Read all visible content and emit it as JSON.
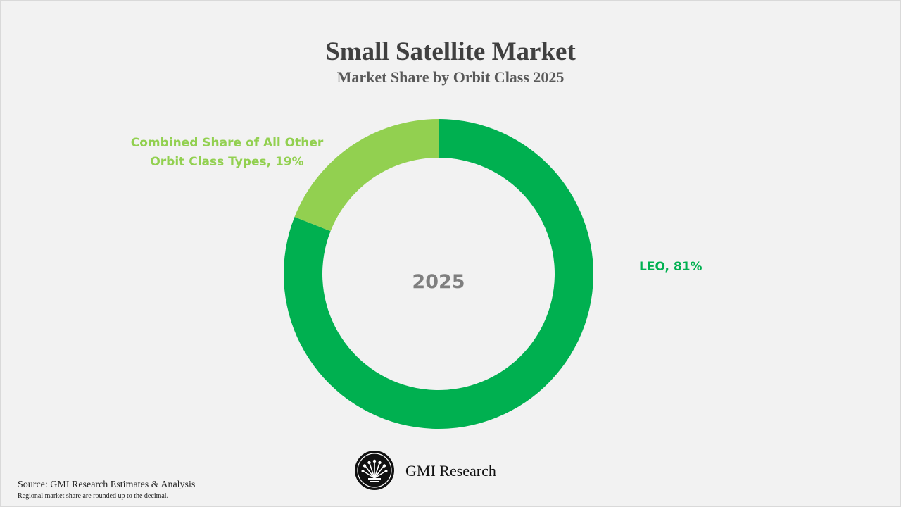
{
  "header": {
    "title": "Small Satellite Market",
    "subtitle": "Market Share by Orbit Class 2025"
  },
  "chart_data": {
    "type": "pie",
    "variant": "donut",
    "title": "Small Satellite Market",
    "subtitle": "Market Share by Orbit Class 2025",
    "center_label": "2025",
    "categories": [
      "LEO",
      "Combined Share of All Other Orbit Class Types"
    ],
    "values": [
      81,
      19
    ],
    "unit": "%",
    "colors": [
      "#00b050",
      "#92d050"
    ],
    "data_labels": [
      "LEO, 81%",
      "Combined Share of All Other Orbit Class Types, 19%"
    ],
    "legend": "none"
  },
  "footer": {
    "brand": "GMI Research",
    "source": "Source: GMI Research Estimates & Analysis",
    "note": "Regional market share are rounded up to the decimal."
  },
  "icons": {
    "logo": "gmi-logo-icon"
  }
}
